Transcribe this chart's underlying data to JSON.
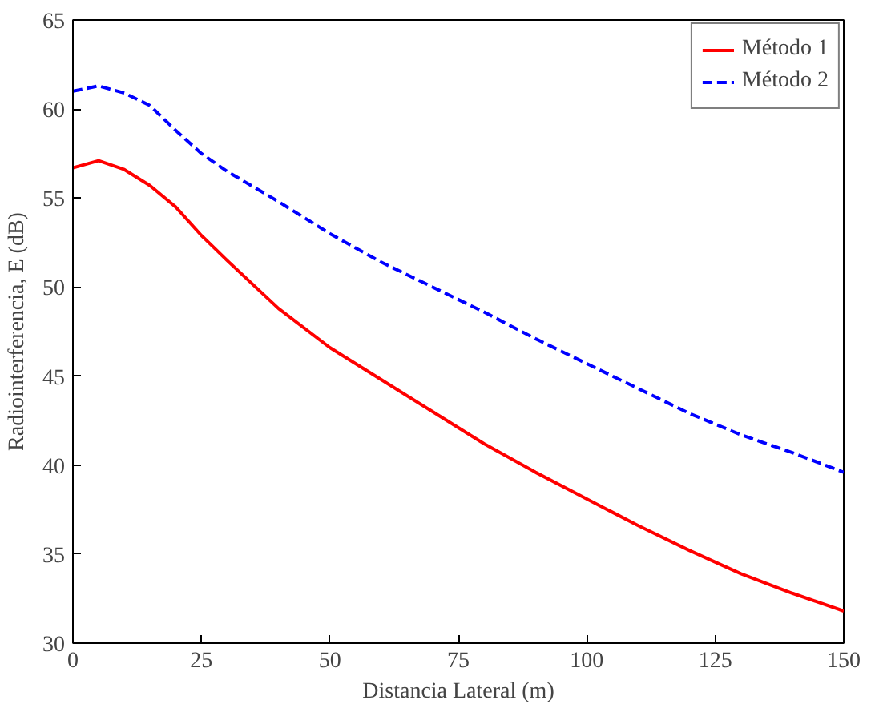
{
  "chart_data": {
    "type": "line",
    "xlabel": "Distancia Lateral (m)",
    "ylabel": "Radiointerferencia, E (dB)",
    "x": [
      0,
      5,
      10,
      15,
      20,
      25,
      30,
      40,
      50,
      60,
      70,
      80,
      90,
      100,
      110,
      120,
      130,
      140,
      150
    ],
    "xlim": [
      0,
      150
    ],
    "xticks": [
      0,
      25,
      50,
      75,
      100,
      125,
      150
    ],
    "ylim": [
      30,
      65
    ],
    "yticks": [
      30,
      35,
      40,
      45,
      50,
      55,
      60,
      65
    ],
    "grid": false,
    "legend": "top right",
    "marker": "none",
    "series": [
      {
        "name": "Método 1",
        "color": "#ff0000",
        "line_style": "solid",
        "values": [
          56.7,
          57.1,
          56.6,
          55.7,
          54.5,
          52.9,
          51.5,
          48.8,
          46.6,
          44.8,
          43.0,
          41.2,
          39.6,
          38.1,
          36.6,
          35.2,
          33.9,
          32.8,
          31.8
        ]
      },
      {
        "name": "Método 2",
        "color": "#0000ff",
        "line_style": "dashed",
        "values": [
          61.0,
          61.3,
          60.9,
          60.2,
          58.8,
          57.5,
          56.5,
          54.8,
          53.0,
          51.4,
          50.0,
          48.6,
          47.1,
          45.7,
          44.3,
          42.9,
          41.7,
          40.7,
          39.6
        ]
      }
    ]
  }
}
